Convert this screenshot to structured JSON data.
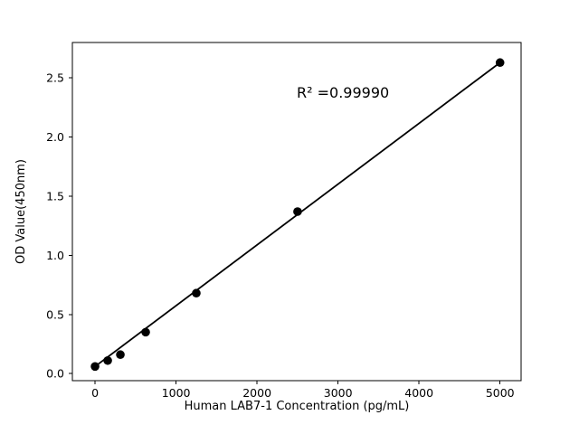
{
  "figure": {
    "background": "#ffffff"
  },
  "chart_data": {
    "type": "scatter",
    "title": "",
    "xlabel": "Human LAB7-1 Concentration (pg/mL)",
    "ylabel": "OD Value(450nm)",
    "annotation": "R² =0.99990",
    "points": {
      "x": [
        0,
        156.25,
        312.5,
        625,
        1250,
        2500,
        5000
      ],
      "y": [
        0.06,
        0.11,
        0.16,
        0.35,
        0.68,
        1.37,
        2.63
      ]
    },
    "fit_line": {
      "x": [
        0,
        5000
      ],
      "y": [
        0.06,
        2.63
      ]
    },
    "x_ticks": [
      {
        "value": 0,
        "label": "0"
      },
      {
        "value": 1000,
        "label": "1000"
      },
      {
        "value": 2000,
        "label": "2000"
      },
      {
        "value": 3000,
        "label": "3000"
      },
      {
        "value": 4000,
        "label": "4000"
      },
      {
        "value": 5000,
        "label": "5000"
      }
    ],
    "y_ticks": [
      {
        "value": 0.0,
        "label": "0.0"
      },
      {
        "value": 0.5,
        "label": "0.5"
      },
      {
        "value": 1.0,
        "label": "1.0"
      },
      {
        "value": 1.5,
        "label": "1.5"
      },
      {
        "value": 2.0,
        "label": "2.0"
      },
      {
        "value": 2.5,
        "label": "2.5"
      }
    ],
    "xlim": [
      -280,
      5260
    ],
    "ylim": [
      -0.06,
      2.8
    ],
    "grid": false,
    "legend": null,
    "marker_color": "#000000",
    "line_color": "#000000",
    "axis_color": "#000000"
  }
}
